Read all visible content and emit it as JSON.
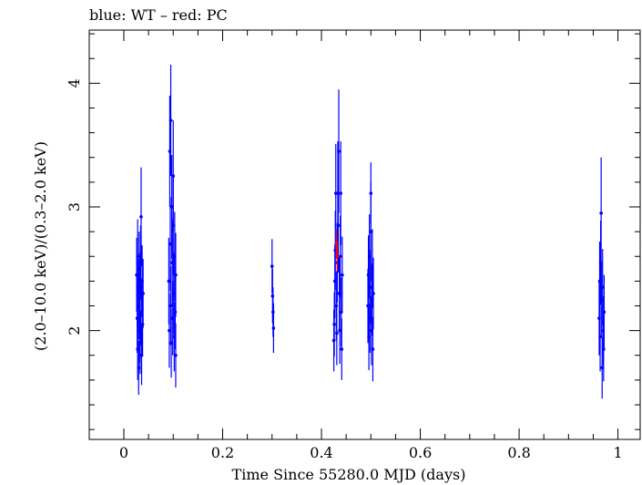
{
  "chart_data": {
    "type": "scatter",
    "title": "blue: WT – red: PC",
    "xlabel": "Time Since 55280.0 MJD (days)",
    "ylabel": "(2.0–10.0 keV)/(0.3–2.0 keV)",
    "xlim": [
      -0.07,
      1.045
    ],
    "ylim": [
      1.12,
      4.43
    ],
    "x_ticks": [
      0,
      0.2,
      0.4,
      0.6,
      0.8,
      1
    ],
    "x_tick_labels": [
      "0",
      "0.2",
      "0.4",
      "0.6",
      "0.8",
      "1"
    ],
    "y_ticks": [
      2,
      3,
      4
    ],
    "y_tick_labels": [
      "2",
      "3",
      "4"
    ],
    "grid": false,
    "series": [
      {
        "color": "#0000ff",
        "points": [
          [
            0.026,
            2.45,
            0.3
          ],
          [
            0.027,
            2.1,
            0.28
          ],
          [
            0.028,
            1.85,
            0.25
          ],
          [
            0.028,
            2.6,
            0.3
          ],
          [
            0.029,
            2.3,
            0.28
          ],
          [
            0.03,
            1.7,
            0.22
          ],
          [
            0.03,
            2.2,
            0.27
          ],
          [
            0.031,
            2.5,
            0.3
          ],
          [
            0.032,
            2.0,
            0.26
          ],
          [
            0.032,
            2.35,
            0.28
          ],
          [
            0.033,
            1.9,
            0.25
          ],
          [
            0.034,
            2.55,
            0.3
          ],
          [
            0.035,
            2.92,
            0.4
          ],
          [
            0.035,
            2.15,
            0.27
          ],
          [
            0.036,
            1.8,
            0.24
          ],
          [
            0.037,
            2.4,
            0.29
          ],
          [
            0.038,
            2.05,
            0.26
          ],
          [
            0.039,
            2.3,
            0.28
          ],
          [
            0.091,
            2.4,
            0.35
          ],
          [
            0.092,
            2.0,
            0.3
          ],
          [
            0.093,
            3.45,
            0.45
          ],
          [
            0.094,
            2.7,
            0.38
          ],
          [
            0.095,
            2.2,
            0.32
          ],
          [
            0.095,
            3.7,
            0.45
          ],
          [
            0.096,
            1.9,
            0.28
          ],
          [
            0.097,
            3.0,
            0.42
          ],
          [
            0.098,
            2.55,
            0.35
          ],
          [
            0.099,
            2.1,
            0.3
          ],
          [
            0.1,
            3.25,
            0.45
          ],
          [
            0.1,
            2.85,
            0.4
          ],
          [
            0.101,
            2.3,
            0.33
          ],
          [
            0.102,
            1.95,
            0.28
          ],
          [
            0.103,
            2.6,
            0.36
          ],
          [
            0.104,
            2.15,
            0.3
          ],
          [
            0.105,
            2.45,
            0.34
          ],
          [
            0.105,
            1.8,
            0.26
          ],
          [
            0.3,
            2.52,
            0.22
          ],
          [
            0.301,
            2.28,
            0.22
          ],
          [
            0.302,
            2.15,
            0.2
          ],
          [
            0.303,
            2.02,
            0.2
          ],
          [
            0.425,
            1.92,
            0.25
          ],
          [
            0.426,
            2.05,
            0.26
          ],
          [
            0.427,
            2.4,
            0.3
          ],
          [
            0.428,
            2.65,
            0.32
          ],
          [
            0.429,
            3.11,
            0.4
          ],
          [
            0.43,
            2.2,
            0.28
          ],
          [
            0.431,
            1.98,
            0.26
          ],
          [
            0.432,
            2.55,
            0.32
          ],
          [
            0.433,
            3.11,
            0.42
          ],
          [
            0.434,
            2.85,
            0.38
          ],
          [
            0.435,
            3.45,
            0.5
          ],
          [
            0.436,
            2.3,
            0.3
          ],
          [
            0.437,
            2.0,
            0.27
          ],
          [
            0.438,
            2.6,
            0.33
          ],
          [
            0.439,
            3.11,
            0.42
          ],
          [
            0.44,
            2.15,
            0.28
          ],
          [
            0.441,
            1.85,
            0.25
          ],
          [
            0.442,
            2.45,
            0.31
          ],
          [
            0.494,
            2.2,
            0.3
          ],
          [
            0.495,
            2.45,
            0.32
          ],
          [
            0.496,
            1.95,
            0.27
          ],
          [
            0.497,
            2.6,
            0.34
          ],
          [
            0.498,
            2.1,
            0.28
          ],
          [
            0.499,
            2.35,
            0.3
          ],
          [
            0.5,
            2.8,
            0.4
          ],
          [
            0.5,
            3.11,
            0.25
          ],
          [
            0.501,
            2.0,
            0.28
          ],
          [
            0.502,
            2.25,
            0.29
          ],
          [
            0.503,
            2.5,
            0.32
          ],
          [
            0.504,
            1.85,
            0.26
          ],
          [
            0.505,
            2.3,
            0.29
          ],
          [
            0.962,
            2.1,
            0.3
          ],
          [
            0.963,
            2.4,
            0.32
          ],
          [
            0.964,
            1.95,
            0.28
          ],
          [
            0.965,
            2.55,
            0.34
          ],
          [
            0.966,
            2.95,
            0.45
          ],
          [
            0.967,
            2.25,
            0.3
          ],
          [
            0.968,
            1.7,
            0.25
          ],
          [
            0.969,
            2.35,
            0.31
          ],
          [
            0.97,
            2.0,
            0.28
          ],
          [
            0.971,
            1.85,
            0.26
          ],
          [
            0.972,
            2.15,
            0.3
          ]
        ]
      },
      {
        "color": "#ff0000",
        "points": [
          [
            0.43,
            2.7,
            0.12
          ],
          [
            0.432,
            2.6,
            0.12
          ]
        ]
      }
    ]
  }
}
